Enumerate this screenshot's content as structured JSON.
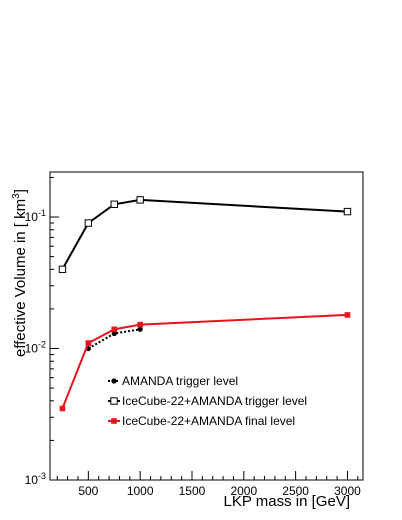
{
  "chart_data": {
    "type": "line",
    "title": "",
    "xlabel": "LKP mass in [GeV]",
    "ylabel": "effective Volume in [ km",
    "ylabel_exponent": "3",
    "ylabel_suffix": "]",
    "xlim": [
      130,
      3150
    ],
    "ylim": [
      0.001,
      0.22
    ],
    "yscale": "log",
    "grid": false,
    "legend_position": "bottom-center",
    "x_ticks": [
      500,
      1000,
      1500,
      2000,
      2500,
      3000
    ],
    "x_tick_labels": [
      "500",
      "1000",
      "1500",
      "2000",
      "2500",
      "3000"
    ],
    "y_ticks": [
      0.001,
      0.01,
      0.1
    ],
    "y_tick_labels": [
      {
        "base": "10",
        "exp": "-3"
      },
      {
        "base": "10",
        "exp": "-2"
      },
      {
        "base": "10",
        "exp": "-1"
      }
    ],
    "series": [
      {
        "name": "AMANDA trigger level",
        "color": "#000000",
        "line_style": "dotted",
        "marker": "filled-circle",
        "x": [
          500,
          750,
          1000
        ],
        "y": [
          0.01,
          0.013,
          0.014
        ]
      },
      {
        "name": "IceCube-22+AMANDA trigger level",
        "color": "#000000",
        "line_style": "solid",
        "marker": "open-square",
        "x": [
          250,
          500,
          750,
          1000,
          3000
        ],
        "y": [
          0.04,
          0.09,
          0.125,
          0.135,
          0.11
        ]
      },
      {
        "name": "IceCube-22+AMANDA final level",
        "color": "#e8141b",
        "line_style": "solid",
        "marker": "filled-square",
        "x": [
          250,
          500,
          750,
          1000,
          3000
        ],
        "y": [
          0.0035,
          0.011,
          0.014,
          0.0152,
          0.018
        ]
      }
    ]
  }
}
